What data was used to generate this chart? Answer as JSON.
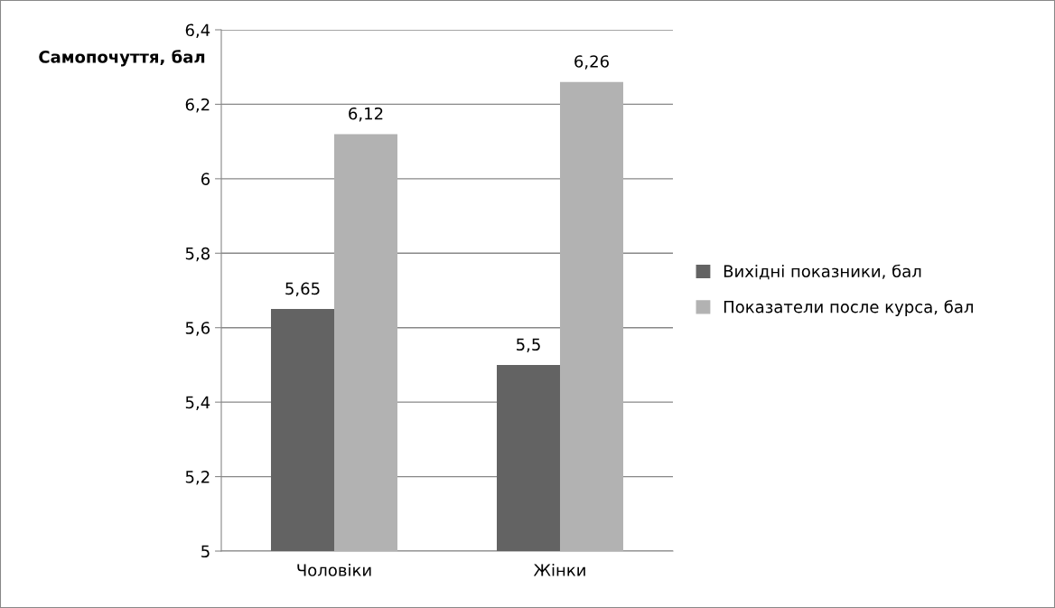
{
  "chart_data": {
    "type": "bar",
    "ylabel": "Самопочуття, бал",
    "categories": [
      "Чоловіки",
      "Жінки"
    ],
    "series": [
      {
        "name": "Вихідні показники, бал",
        "color": "#636363",
        "values": [
          5.65,
          5.5
        ],
        "value_labels": [
          "5,65",
          "5,5"
        ]
      },
      {
        "name": "Показатели после курса, бал",
        "color": "#b2b2b2",
        "values": [
          6.12,
          6.26
        ],
        "value_labels": [
          "6,12",
          "6,26"
        ]
      }
    ],
    "ylim": [
      5,
      6.4
    ],
    "yticks": [
      5,
      {
        "value": 5.2,
        "label": "5,2"
      },
      {
        "value": 5.4,
        "label": "5,4"
      },
      {
        "value": 5.6,
        "label": "5,6"
      },
      {
        "value": 5.8,
        "label": "5,8"
      },
      6,
      {
        "value": 6.2,
        "label": "6,2"
      },
      {
        "value": 6.4,
        "label": "6,4"
      }
    ],
    "grid": "y",
    "legend": "right"
  }
}
